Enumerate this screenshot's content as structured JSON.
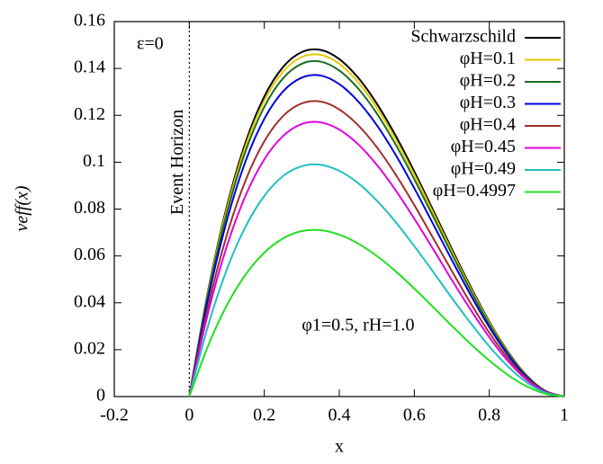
{
  "chart_data": {
    "type": "line",
    "xlabel": "x",
    "ylabel": "veff(x)",
    "x": [
      0,
      0.05,
      0.1,
      0.15,
      0.2,
      0.25,
      0.3,
      0.35,
      0.4,
      0.45,
      0.5,
      0.55,
      0.6,
      0.65,
      0.7,
      0.75,
      0.8,
      0.85,
      0.9,
      0.95,
      1
    ],
    "series": [
      {
        "name": "Schwarzschild",
        "color": "#000000",
        "values": [
          0,
          0.0451,
          0.081,
          0.1084,
          0.128,
          0.1406,
          0.147,
          0.1479,
          0.144,
          0.1361,
          0.125,
          0.1114,
          0.096,
          0.0796,
          0.063,
          0.0469,
          0.032,
          0.0191,
          0.009,
          0.0024,
          0
        ]
      },
      {
        "name": "φH=0.1",
        "color": "#e6c800",
        "values": [
          0,
          0.0445,
          0.0799,
          0.1069,
          0.1262,
          0.1386,
          0.1449,
          0.1458,
          0.142,
          0.1342,
          0.1233,
          0.1098,
          0.0947,
          0.0785,
          0.0621,
          0.0462,
          0.0316,
          0.0188,
          0.0089,
          0.0024,
          0
        ]
      },
      {
        "name": "φH=0.2",
        "color": "#1a6e1a",
        "values": [
          0,
          0.0436,
          0.0782,
          0.1047,
          0.1236,
          0.1358,
          0.142,
          0.1429,
          0.1391,
          0.1315,
          0.1208,
          0.1076,
          0.0927,
          0.0769,
          0.0609,
          0.0453,
          0.0309,
          0.0185,
          0.0087,
          0.0023,
          0
        ]
      },
      {
        "name": "φH=0.3",
        "color": "#0000e0",
        "values": [
          0,
          0.0418,
          0.075,
          0.1004,
          0.1185,
          0.1302,
          0.1361,
          0.137,
          0.1333,
          0.126,
          0.1158,
          0.1032,
          0.0889,
          0.0737,
          0.0583,
          0.0434,
          0.0296,
          0.0177,
          0.0083,
          0.0022,
          0
        ]
      },
      {
        "name": "φH=0.4",
        "color": "#a0302a",
        "values": [
          0,
          0.0384,
          0.0689,
          0.0922,
          0.1089,
          0.1197,
          0.1251,
          0.1259,
          0.1225,
          0.1158,
          0.1064,
          0.0948,
          0.0817,
          0.0677,
          0.0536,
          0.0399,
          0.0272,
          0.0163,
          0.0077,
          0.002,
          0
        ]
      },
      {
        "name": "φH=0.45",
        "color": "#e000e0",
        "values": [
          0,
          0.0357,
          0.0641,
          0.0857,
          0.1012,
          0.1112,
          0.1163,
          0.117,
          0.1139,
          0.1077,
          0.0989,
          0.0881,
          0.0759,
          0.063,
          0.0498,
          0.0371,
          0.0253,
          0.0151,
          0.0071,
          0.0019,
          0
        ]
      },
      {
        "name": "φH=0.49",
        "color": "#20c0c0",
        "values": [
          0,
          0.0302,
          0.0542,
          0.0725,
          0.0856,
          0.0941,
          0.0983,
          0.0989,
          0.0963,
          0.0911,
          0.0836,
          0.0745,
          0.0642,
          0.0533,
          0.0421,
          0.0314,
          0.0214,
          0.0128,
          0.006,
          0.0016,
          0
        ]
      },
      {
        "name": "φH=0.4997",
        "color": "#20e020",
        "values": [
          0,
          0.0216,
          0.0389,
          0.052,
          0.0614,
          0.0675,
          0.0706,
          0.071,
          0.0691,
          0.0653,
          0.06,
          0.0535,
          0.0461,
          0.0382,
          0.0302,
          0.0225,
          0.0154,
          0.0092,
          0.0043,
          0.0012,
          0
        ]
      }
    ],
    "xlim": [
      -0.2,
      1
    ],
    "xticks": [
      -0.2,
      0,
      0.2,
      0.4,
      0.6,
      0.8,
      1
    ],
    "ylim": [
      0,
      0.16
    ],
    "yticks": [
      0,
      0.02,
      0.04,
      0.06,
      0.08,
      0.1,
      0.12,
      0.14,
      0.16
    ],
    "grid": false,
    "legend": "top-right",
    "annotations": [
      {
        "text": "ε=0",
        "x": -0.14,
        "y": 0.15
      },
      {
        "text": "φ1=0.5, rH=1.0",
        "x": 0.3,
        "y": 0.03
      },
      {
        "text": "Event Horizon",
        "x": 0,
        "y": 0.1
      }
    ]
  }
}
